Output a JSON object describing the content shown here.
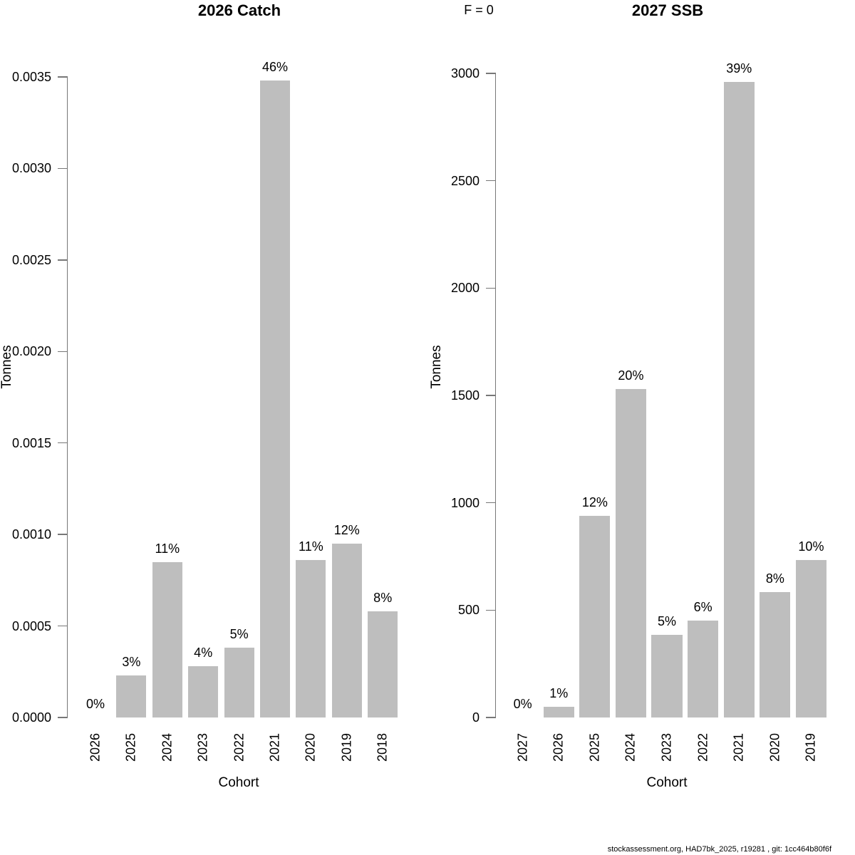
{
  "annotation": {
    "f_label": "F = 0"
  },
  "footer": {
    "credit": "stockassessment.org, HAD7bk_2025, r19281 , git: 1cc464b80f6f"
  },
  "chart_data": [
    {
      "type": "bar",
      "title": "2026 Catch",
      "xlabel": "Cohort",
      "ylabel": "Tonnes",
      "ylim": [
        0,
        0.0035
      ],
      "grid": false,
      "legend": null,
      "bar_color": "#bebebe",
      "yticks": [
        {
          "value": 0.0,
          "label": "0.0000"
        },
        {
          "value": 0.0005,
          "label": "0.0005"
        },
        {
          "value": 0.001,
          "label": "0.0010"
        },
        {
          "value": 0.0015,
          "label": "0.0015"
        },
        {
          "value": 0.002,
          "label": "0.0020"
        },
        {
          "value": 0.0025,
          "label": "0.0025"
        },
        {
          "value": 0.003,
          "label": "0.0030"
        },
        {
          "value": 0.0035,
          "label": "0.0035"
        }
      ],
      "categories": [
        "2026",
        "2025",
        "2024",
        "2023",
        "2022",
        "2021",
        "2020",
        "2019",
        "2018"
      ],
      "values": [
        0,
        0.00023,
        0.00085,
        0.00028,
        0.00038,
        0.00348,
        0.00086,
        0.00095,
        0.00058
      ],
      "bar_labels": [
        "0%",
        "3%",
        "11%",
        "4%",
        "5%",
        "46%",
        "11%",
        "12%",
        "8%"
      ]
    },
    {
      "type": "bar",
      "title": "2027 SSB",
      "xlabel": "Cohort",
      "ylabel": "Tonnes",
      "ylim": [
        0,
        3000
      ],
      "grid": false,
      "legend": null,
      "bar_color": "#bebebe",
      "yticks": [
        {
          "value": 0,
          "label": "0"
        },
        {
          "value": 500,
          "label": "500"
        },
        {
          "value": 1000,
          "label": "1000"
        },
        {
          "value": 1500,
          "label": "1500"
        },
        {
          "value": 2000,
          "label": "2000"
        },
        {
          "value": 2500,
          "label": "2500"
        },
        {
          "value": 3000,
          "label": "3000"
        }
      ],
      "categories": [
        "2027",
        "2026",
        "2025",
        "2024",
        "2023",
        "2022",
        "2021",
        "2020",
        "2019"
      ],
      "values": [
        0,
        50,
        940,
        1530,
        385,
        450,
        2960,
        585,
        735
      ],
      "bar_labels": [
        "0%",
        "1%",
        "12%",
        "20%",
        "5%",
        "6%",
        "39%",
        "8%",
        "10%"
      ]
    }
  ]
}
